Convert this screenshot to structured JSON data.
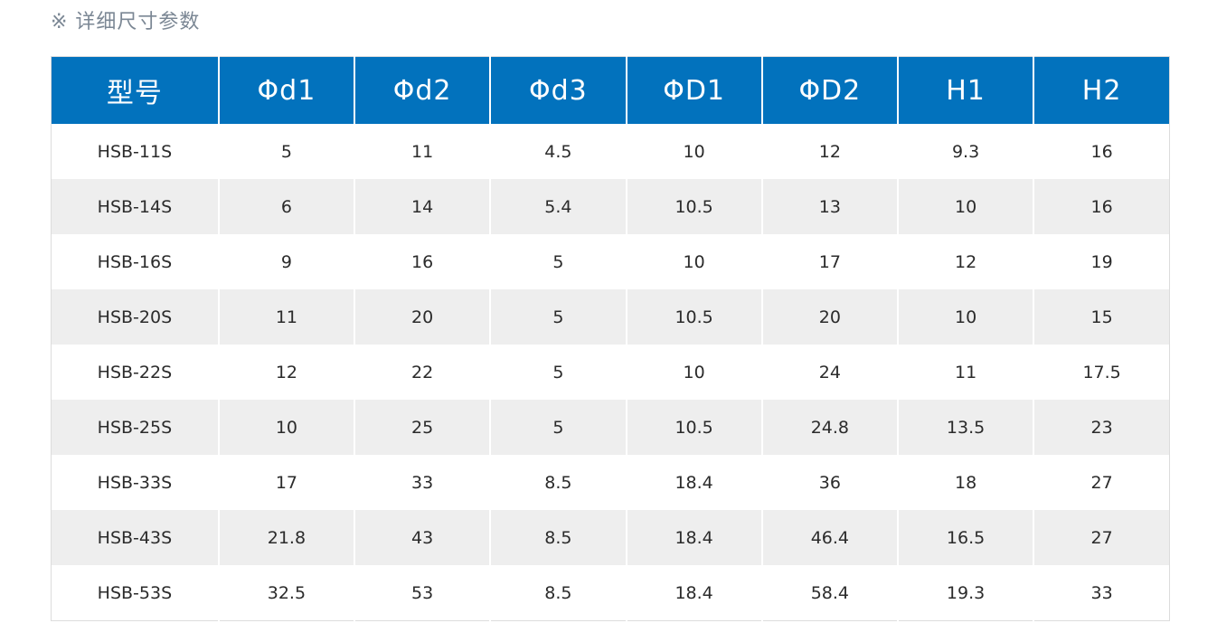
{
  "section_title": "※ 详细尺寸参数",
  "table": {
    "headers": [
      "型号",
      "Φd1",
      "Φd2",
      "Φd3",
      "ΦD1",
      "ΦD2",
      "H1",
      "H2"
    ],
    "rows": [
      [
        "HSB-11S",
        "5",
        "11",
        "4.5",
        "10",
        "12",
        "9.3",
        "16"
      ],
      [
        "HSB-14S",
        "6",
        "14",
        "5.4",
        "10.5",
        "13",
        "10",
        "16"
      ],
      [
        "HSB-16S",
        "9",
        "16",
        "5",
        "10",
        "17",
        "12",
        "19"
      ],
      [
        "HSB-20S",
        "11",
        "20",
        "5",
        "10.5",
        "20",
        "10",
        "15"
      ],
      [
        "HSB-22S",
        "12",
        "22",
        "5",
        "10",
        "24",
        "11",
        "17.5"
      ],
      [
        "HSB-25S",
        "10",
        "25",
        "5",
        "10.5",
        "24.8",
        "13.5",
        "23"
      ],
      [
        "HSB-33S",
        "17",
        "33",
        "8.5",
        "18.4",
        "36",
        "18",
        "27"
      ],
      [
        "HSB-43S",
        "21.8",
        "43",
        "8.5",
        "18.4",
        "46.4",
        "16.5",
        "27"
      ],
      [
        "HSB-53S",
        "32.5",
        "53",
        "8.5",
        "18.4",
        "58.4",
        "19.3",
        "33"
      ]
    ]
  },
  "colors": {
    "header_bg": "#0272bd",
    "header_text": "#ffffff",
    "row_alt_bg": "#eeeeee",
    "title_text": "#7b8794"
  }
}
